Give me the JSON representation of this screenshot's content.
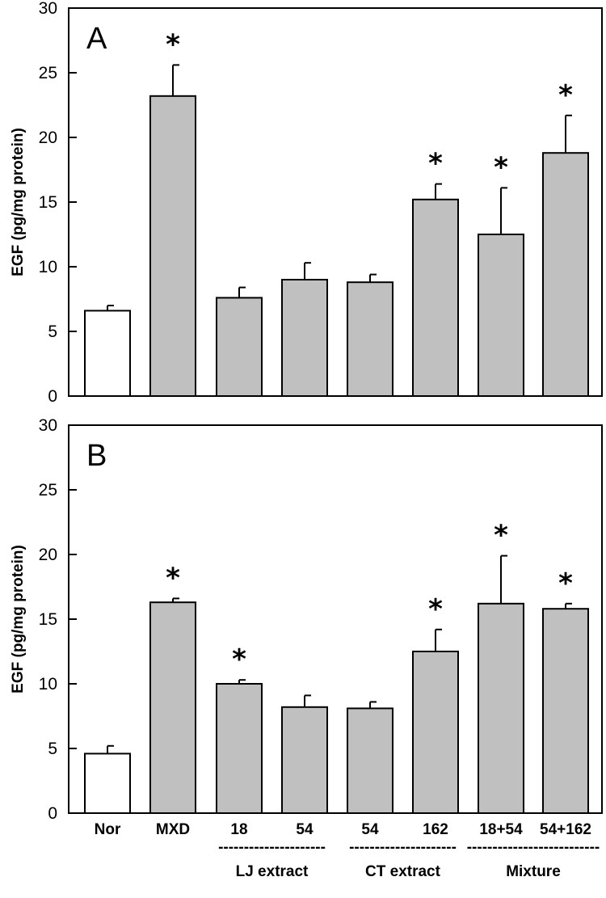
{
  "chart_data": [
    {
      "type": "bar",
      "panel_label": "A",
      "ylabel": "EGF (pg/mg protein)",
      "ylim": [
        0,
        30
      ],
      "yticks": [
        "0",
        "5",
        "10",
        "15",
        "20",
        "25",
        "30"
      ],
      "categories": [
        "Nor",
        "MXD",
        "18",
        "54",
        "54",
        "162",
        "18+54",
        "54+162"
      ],
      "values": [
        6.6,
        23.2,
        7.6,
        9.0,
        8.8,
        15.2,
        12.5,
        18.8
      ],
      "errors": [
        0.4,
        2.4,
        0.8,
        1.3,
        0.6,
        1.2,
        3.6,
        2.9
      ],
      "significant": [
        false,
        true,
        false,
        false,
        false,
        true,
        true,
        true
      ],
      "bar_colors": [
        "#ffffff",
        "#c0c0c0",
        "#c0c0c0",
        "#c0c0c0",
        "#c0c0c0",
        "#c0c0c0",
        "#c0c0c0",
        "#c0c0c0"
      ],
      "marker": "*"
    },
    {
      "type": "bar",
      "panel_label": "B",
      "ylabel": "EGF (pg/mg protein)",
      "ylim": [
        0,
        30
      ],
      "yticks": [
        "0",
        "5",
        "10",
        "15",
        "20",
        "25",
        "30"
      ],
      "categories": [
        "Nor",
        "MXD",
        "18",
        "54",
        "54",
        "162",
        "18+54",
        "54+162"
      ],
      "values": [
        4.6,
        16.3,
        10.0,
        8.2,
        8.1,
        12.5,
        16.2,
        15.8
      ],
      "errors": [
        0.6,
        0.3,
        0.3,
        0.9,
        0.5,
        1.7,
        3.7,
        0.4
      ],
      "significant": [
        false,
        true,
        true,
        false,
        false,
        true,
        true,
        true
      ],
      "bar_colors": [
        "#ffffff",
        "#c0c0c0",
        "#c0c0c0",
        "#c0c0c0",
        "#c0c0c0",
        "#c0c0c0",
        "#c0c0c0",
        "#c0c0c0"
      ],
      "marker": "*"
    }
  ],
  "x_categories": [
    "Nor",
    "MXD",
    "18",
    "54",
    "54",
    "162",
    "18+54",
    "54+162"
  ],
  "x_groups": [
    {
      "label": "LJ extract",
      "dashes": "---------------------",
      "span": [
        2,
        3
      ]
    },
    {
      "label": "CT extract",
      "dashes": "---------------------",
      "span": [
        4,
        5
      ]
    },
    {
      "label": "Mixture",
      "dashes": "--------------------------",
      "span": [
        6,
        7
      ]
    }
  ]
}
